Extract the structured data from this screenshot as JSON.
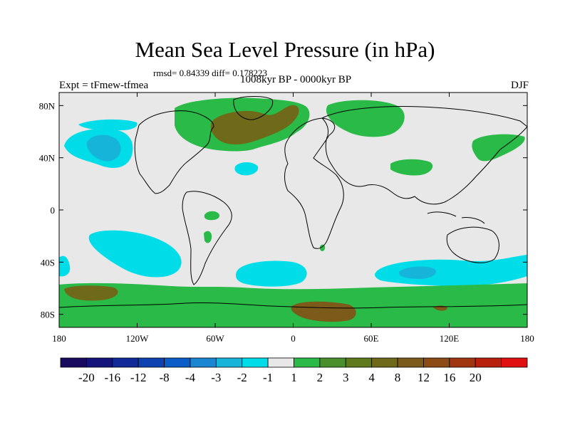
{
  "title": "Mean Sea Level Pressure (in hPa)",
  "stats": "rmsd= 0.84339 diff= 0.178223",
  "experiment": "Expt = tFmew-tfmea",
  "period": "1008kyr BP - 0000kyr BP",
  "season": "DJF",
  "colors": {
    "background": "#e8e8e8",
    "cyan_light": "#00dde8",
    "cyan_mid": "#16b4d8",
    "green": "#29ba48",
    "olive": "#6e6a1a",
    "brown": "#7b5a1a"
  },
  "axes": {
    "x_ticks": [
      {
        "value": -180,
        "label": "180"
      },
      {
        "value": -120,
        "label": "120W"
      },
      {
        "value": -60,
        "label": "60W"
      },
      {
        "value": 0,
        "label": "0"
      },
      {
        "value": 60,
        "label": "60E"
      },
      {
        "value": 120,
        "label": "120E"
      },
      {
        "value": 180,
        "label": "180"
      }
    ],
    "y_ticks": [
      {
        "value": 80,
        "label": "80N"
      },
      {
        "value": 40,
        "label": "40N"
      },
      {
        "value": 0,
        "label": "0"
      },
      {
        "value": -40,
        "label": "40S"
      },
      {
        "value": -80,
        "label": "80S"
      }
    ]
  },
  "colorbar": {
    "colors": [
      "#1a0a5e",
      "#14147a",
      "#102a98",
      "#0d42b0",
      "#0a5cc6",
      "#1a86d2",
      "#16b4d8",
      "#00dde8",
      "#e8e8e8",
      "#29ba48",
      "#4a8f2c",
      "#5e7a1c",
      "#6e6a1a",
      "#7b5a1a",
      "#8c4a14",
      "#a03610",
      "#b8200c",
      "#e01010"
    ],
    "labels": [
      "-20",
      "-16",
      "-12",
      "-8",
      "-4",
      "-3",
      "-2",
      "-1",
      "1",
      "2",
      "3",
      "4",
      "8",
      "12",
      "16",
      "20"
    ]
  }
}
